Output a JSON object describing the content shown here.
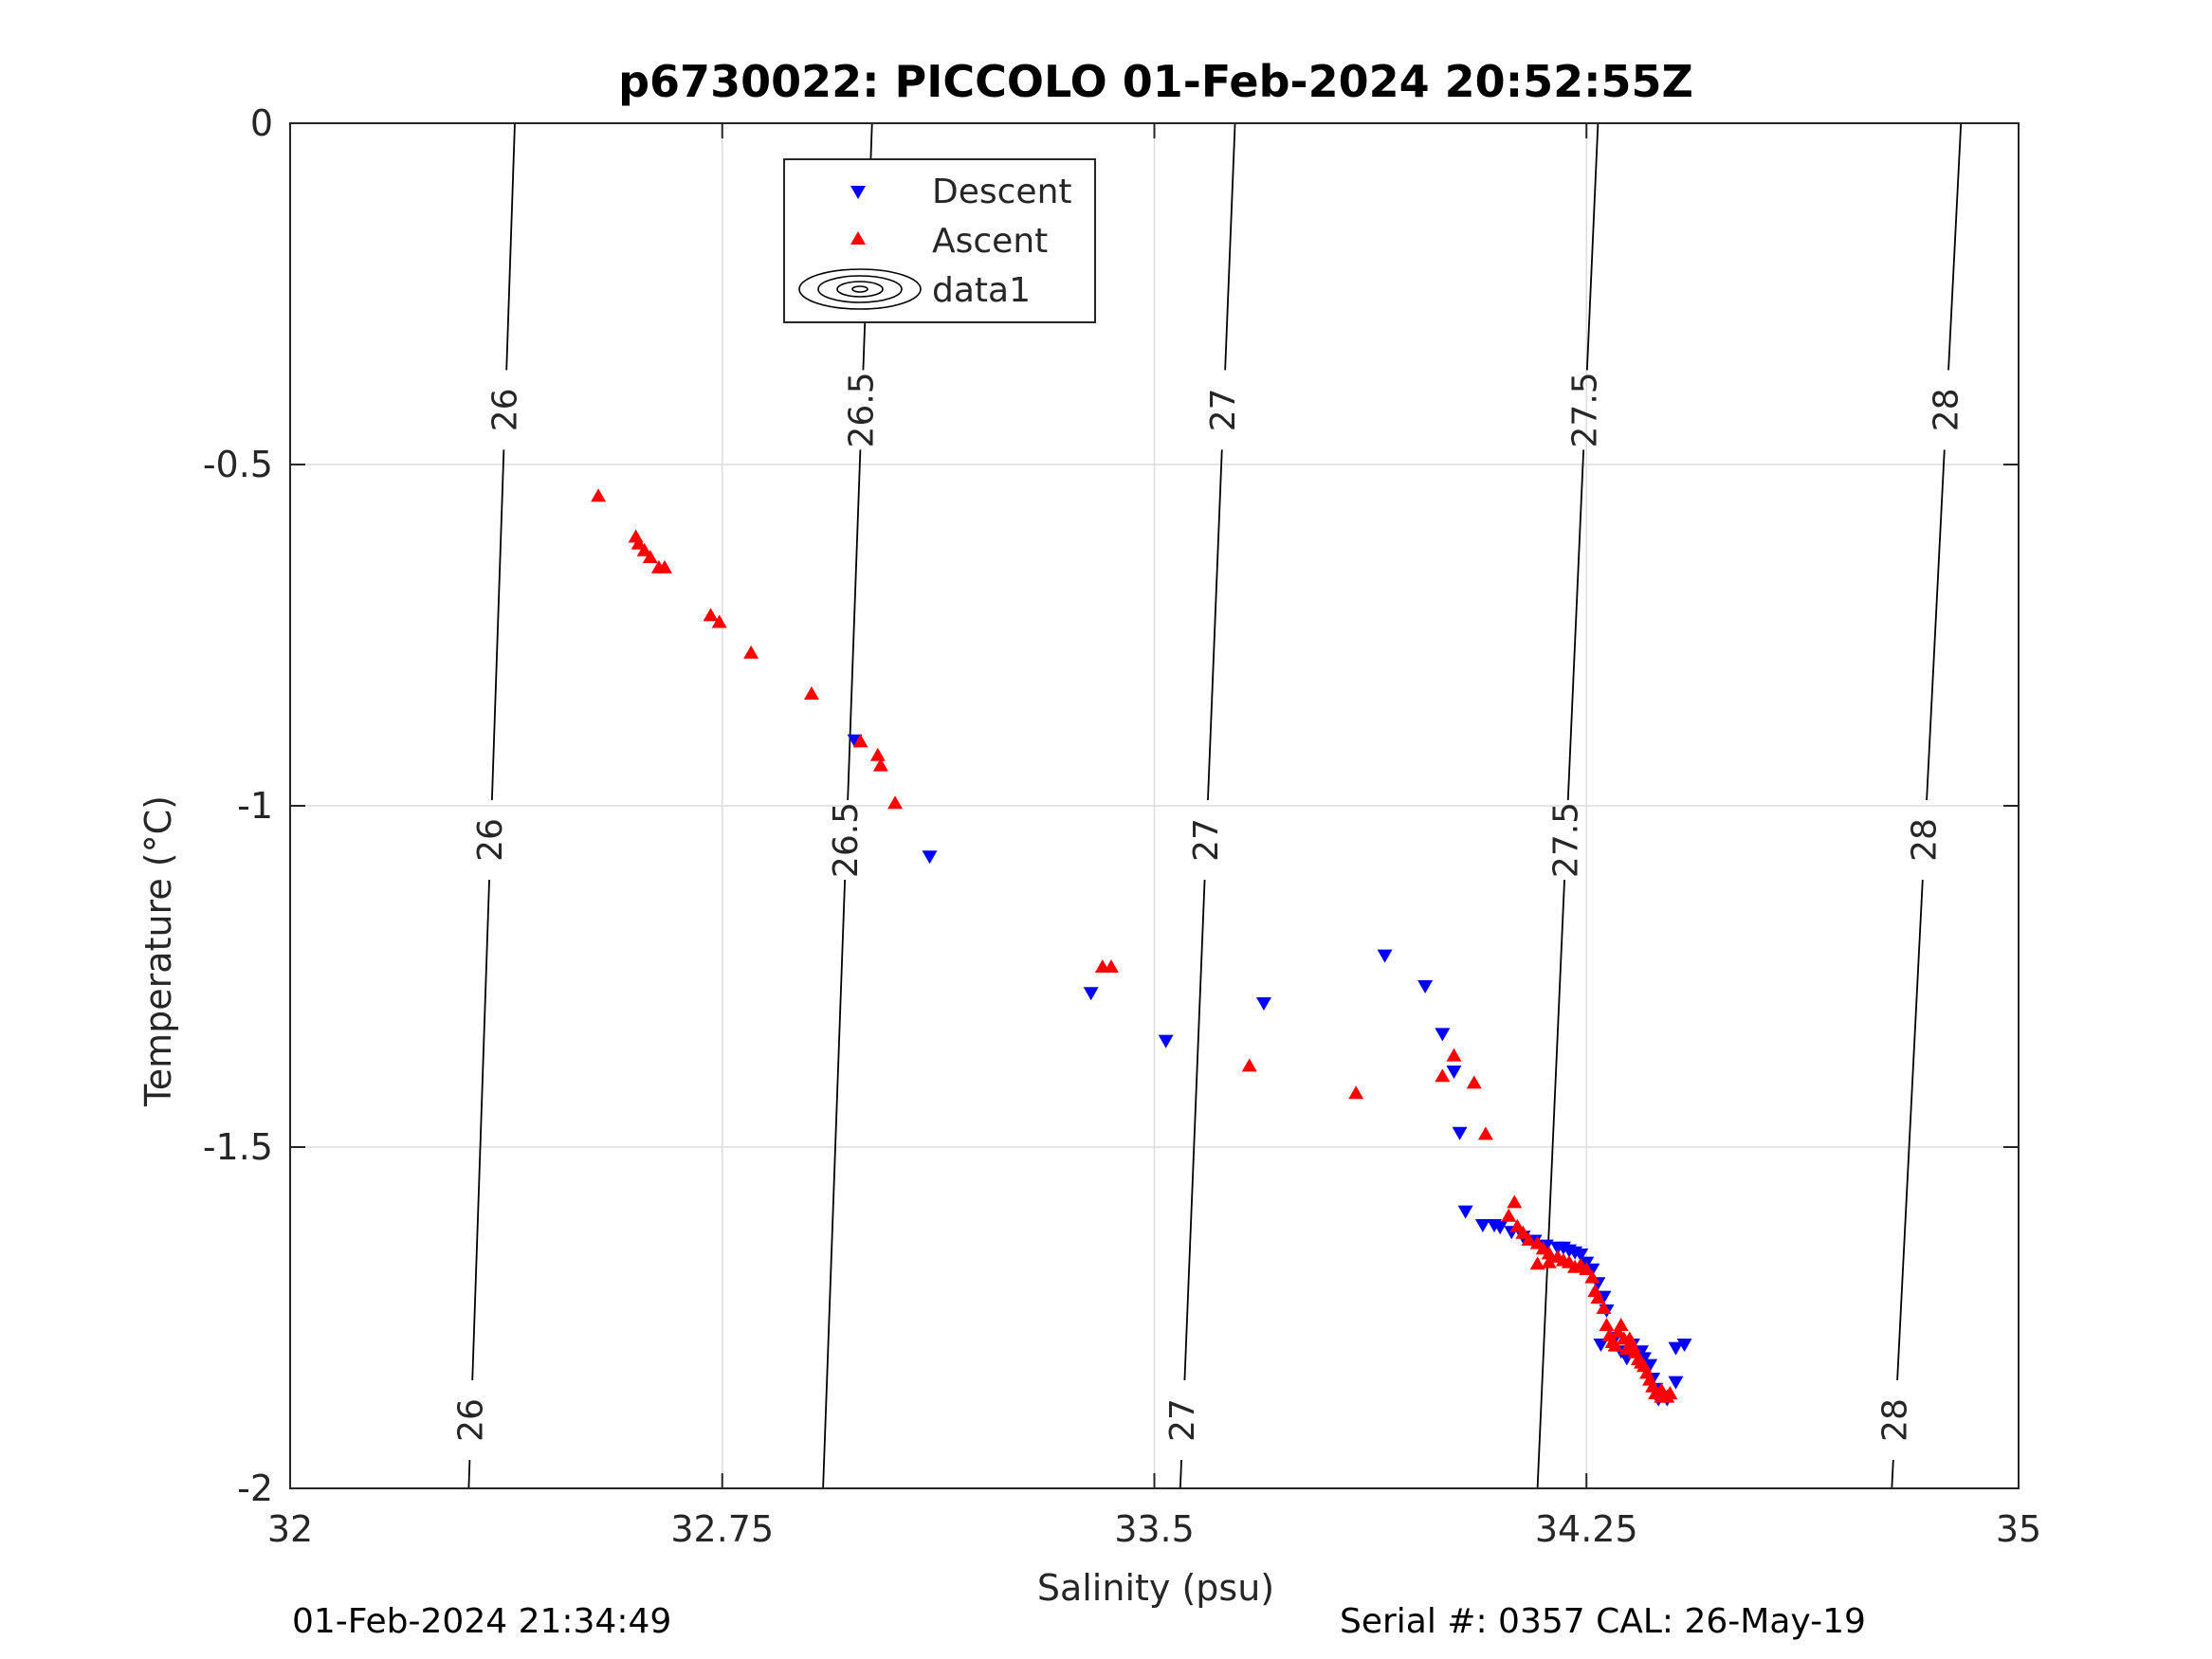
{
  "chart_data": {
    "type": "scatter",
    "title": "p6730022: PICCOLO 01-Feb-2024 20:52:55Z",
    "xlabel": "Salinity (psu)",
    "ylabel": "Temperature (°C)",
    "xlim": [
      32,
      35
    ],
    "ylim": [
      -2,
      0
    ],
    "xticks": [
      32,
      32.75,
      33.5,
      34.25,
      35
    ],
    "xtick_labels": [
      "32",
      "32.75",
      "33.5",
      "34.25",
      "35"
    ],
    "yticks": [
      0,
      -0.5,
      -1,
      -1.5,
      -2
    ],
    "ytick_labels": [
      "0",
      "-0.5",
      "-1",
      "-1.5",
      "-2"
    ],
    "grid": true,
    "legend_position": "top-center",
    "legend": [
      "Descent",
      "Ascent",
      "data1"
    ],
    "colors": {
      "descent": "#0000ff",
      "ascent": "#ff0000",
      "contour": "#000000",
      "grid": "#dcdcdc"
    },
    "series": [
      {
        "name": "Descent",
        "marker": "triangle-down",
        "points": [
          [
            32.98,
            -0.905
          ],
          [
            33.11,
            -1.075
          ],
          [
            33.39,
            -1.275
          ],
          [
            33.52,
            -1.345
          ],
          [
            33.69,
            -1.29
          ],
          [
            33.9,
            -1.22
          ],
          [
            33.97,
            -1.265
          ],
          [
            34.0,
            -1.335
          ],
          [
            34.02,
            -1.39
          ],
          [
            34.03,
            -1.48
          ],
          [
            34.04,
            -1.595
          ],
          [
            34.07,
            -1.615
          ],
          [
            34.09,
            -1.615
          ],
          [
            34.1,
            -1.618
          ],
          [
            34.12,
            -1.625
          ],
          [
            34.14,
            -1.632
          ],
          [
            34.16,
            -1.638
          ],
          [
            34.18,
            -1.645
          ],
          [
            34.2,
            -1.648
          ],
          [
            34.21,
            -1.648
          ],
          [
            34.22,
            -1.652
          ],
          [
            34.23,
            -1.655
          ],
          [
            34.24,
            -1.658
          ],
          [
            34.25,
            -1.67
          ],
          [
            34.26,
            -1.68
          ],
          [
            34.27,
            -1.7
          ],
          [
            34.28,
            -1.72
          ],
          [
            34.285,
            -1.74
          ],
          [
            34.275,
            -1.79
          ],
          [
            34.3,
            -1.78
          ],
          [
            34.31,
            -1.8
          ],
          [
            34.32,
            -1.81
          ],
          [
            34.33,
            -1.79
          ],
          [
            34.345,
            -1.8
          ],
          [
            34.35,
            -1.81
          ],
          [
            34.36,
            -1.82
          ],
          [
            34.365,
            -1.84
          ],
          [
            34.37,
            -1.855
          ],
          [
            34.375,
            -1.87
          ],
          [
            34.39,
            -1.87
          ],
          [
            34.405,
            -1.845
          ],
          [
            34.405,
            -1.795
          ],
          [
            34.42,
            -1.79
          ]
        ]
      },
      {
        "name": "Ascent",
        "marker": "triangle-up",
        "points": [
          [
            32.535,
            -0.545
          ],
          [
            32.6,
            -0.605
          ],
          [
            32.605,
            -0.615
          ],
          [
            32.615,
            -0.625
          ],
          [
            32.625,
            -0.635
          ],
          [
            32.64,
            -0.65
          ],
          [
            32.65,
            -0.65
          ],
          [
            32.73,
            -0.72
          ],
          [
            32.745,
            -0.73
          ],
          [
            32.8,
            -0.775
          ],
          [
            32.905,
            -0.835
          ],
          [
            32.99,
            -0.905
          ],
          [
            33.02,
            -0.925
          ],
          [
            33.025,
            -0.94
          ],
          [
            33.05,
            -0.995
          ],
          [
            33.41,
            -1.235
          ],
          [
            33.425,
            -1.235
          ],
          [
            33.665,
            -1.38
          ],
          [
            33.85,
            -1.42
          ],
          [
            34.0,
            -1.395
          ],
          [
            34.02,
            -1.365
          ],
          [
            34.055,
            -1.405
          ],
          [
            34.075,
            -1.48
          ],
          [
            34.125,
            -1.58
          ],
          [
            34.115,
            -1.6
          ],
          [
            34.13,
            -1.615
          ],
          [
            34.14,
            -1.625
          ],
          [
            34.15,
            -1.635
          ],
          [
            34.165,
            -1.64
          ],
          [
            34.175,
            -1.648
          ],
          [
            34.185,
            -1.655
          ],
          [
            34.2,
            -1.66
          ],
          [
            34.21,
            -1.665
          ],
          [
            34.22,
            -1.668
          ],
          [
            34.23,
            -1.675
          ],
          [
            34.24,
            -1.672
          ],
          [
            34.25,
            -1.678
          ],
          [
            34.165,
            -1.67
          ],
          [
            34.185,
            -1.668
          ],
          [
            34.26,
            -1.69
          ],
          [
            34.265,
            -1.71
          ],
          [
            34.27,
            -1.72
          ],
          [
            34.28,
            -1.735
          ],
          [
            34.285,
            -1.76
          ],
          [
            34.29,
            -1.775
          ],
          [
            34.295,
            -1.785
          ],
          [
            34.3,
            -1.79
          ],
          [
            34.305,
            -1.77
          ],
          [
            34.31,
            -1.76
          ],
          [
            34.315,
            -1.78
          ],
          [
            34.32,
            -1.795
          ],
          [
            34.325,
            -1.78
          ],
          [
            34.33,
            -1.79
          ],
          [
            34.335,
            -1.8
          ],
          [
            34.34,
            -1.81
          ],
          [
            34.345,
            -1.815
          ],
          [
            34.35,
            -1.82
          ],
          [
            34.355,
            -1.83
          ],
          [
            34.36,
            -1.84
          ],
          [
            34.365,
            -1.85
          ],
          [
            34.37,
            -1.86
          ],
          [
            34.38,
            -1.865
          ],
          [
            34.39,
            -1.865
          ],
          [
            34.395,
            -1.86
          ],
          [
            34.38,
            -1.855
          ]
        ]
      }
    ],
    "contours": {
      "name": "data1",
      "levels": [
        {
          "label": "26",
          "top_x": 32.39,
          "bottom_x": 32.31,
          "label_y": [
            -0.42,
            -1.05,
            -1.9
          ]
        },
        {
          "label": "26.5",
          "top_x": 33.01,
          "bottom_x": 32.925,
          "label_y": [
            -0.42,
            -1.05
          ]
        },
        {
          "label": "27",
          "top_x": 33.64,
          "bottom_x": 33.545,
          "label_y": [
            -0.42,
            -1.05,
            -1.9
          ]
        },
        {
          "label": "27.5",
          "top_x": 34.27,
          "bottom_x": 34.165,
          "label_y": [
            -0.42,
            -1.05
          ]
        },
        {
          "label": "28",
          "top_x": 34.9,
          "bottom_x": 34.78,
          "label_y": [
            -0.42,
            -1.05,
            -1.9
          ]
        }
      ]
    }
  },
  "footer": {
    "left": "01-Feb-2024 21:34:49",
    "right": "Serial #: 0357  CAL: 26-May-19"
  }
}
